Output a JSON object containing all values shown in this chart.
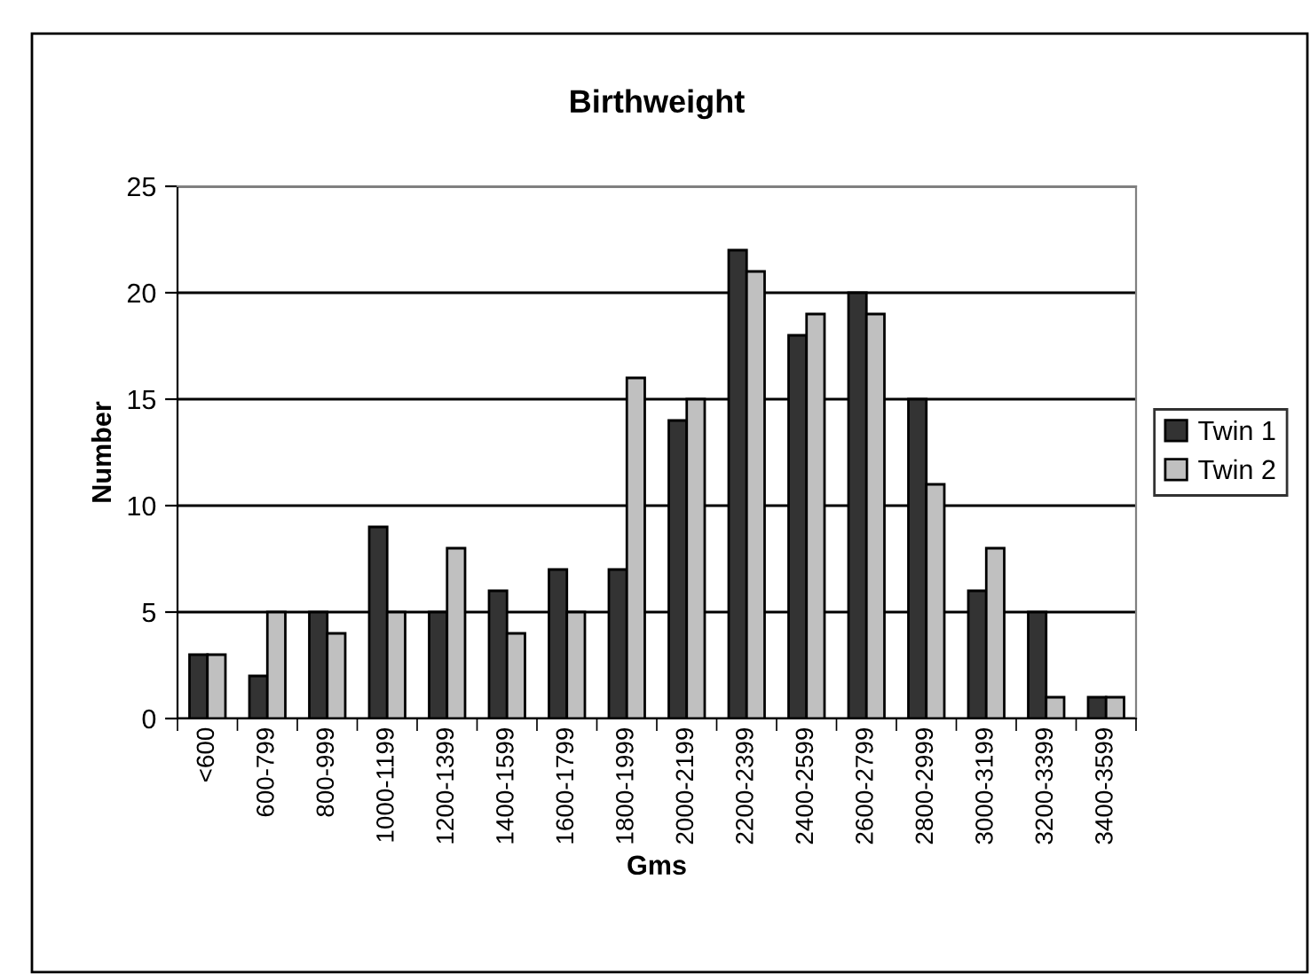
{
  "chart_data": {
    "type": "bar",
    "title": "Birthweight",
    "xlabel": "Gms",
    "ylabel": "Number",
    "categories": [
      "<600",
      "600-799",
      "800-999",
      "1000-1199",
      "1200-1399",
      "1400-1599",
      "1600-1799",
      "1800-1999",
      "2000-2199",
      "2200-2399",
      "2400-2599",
      "2600-2799",
      "2800-2999",
      "3000-3199",
      "3200-3399",
      "3400-3599"
    ],
    "series": [
      {
        "name": "Twin 1",
        "color": "#333333",
        "values": [
          3,
          2,
          5,
          9,
          5,
          6,
          7,
          7,
          14,
          22,
          18,
          20,
          15,
          6,
          5,
          1
        ]
      },
      {
        "name": "Twin 2",
        "color": "#c0c0c0",
        "values": [
          3,
          5,
          4,
          5,
          8,
          4,
          5,
          16,
          15,
          21,
          19,
          19,
          11,
          8,
          1,
          1
        ]
      }
    ],
    "ylim": [
      0,
      25
    ],
    "yticks": [
      0,
      5,
      10,
      15,
      20,
      25
    ],
    "grid": "y",
    "legend": "right"
  }
}
